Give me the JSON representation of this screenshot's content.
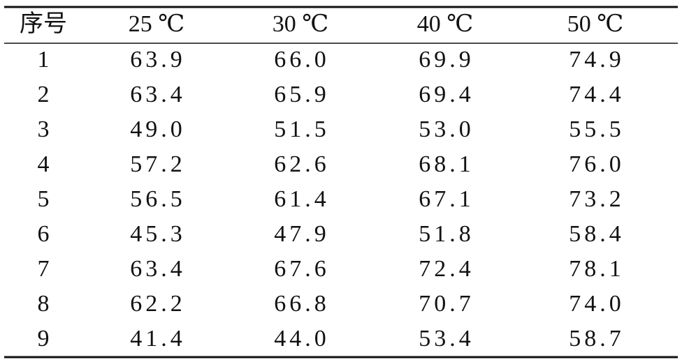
{
  "table": {
    "header": [
      "序号",
      "25 ℃",
      "30 ℃",
      "40 ℃",
      "50 ℃"
    ],
    "rows": [
      [
        "1",
        "63.9",
        "66.0",
        "69.9",
        "74.9"
      ],
      [
        "2",
        "63.4",
        "65.9",
        "69.4",
        "74.4"
      ],
      [
        "3",
        "49.0",
        "51.5",
        "53.0",
        "55.5"
      ],
      [
        "4",
        "57.2",
        "62.6",
        "68.1",
        "76.0"
      ],
      [
        "5",
        "56.5",
        "61.4",
        "67.1",
        "73.2"
      ],
      [
        "6",
        "45.3",
        "47.9",
        "51.8",
        "58.4"
      ],
      [
        "7",
        "63.4",
        "67.6",
        "72.4",
        "78.1"
      ],
      [
        "8",
        "62.2",
        "66.8",
        "70.7",
        "74.0"
      ],
      [
        "9",
        "41.4",
        "44.0",
        "53.4",
        "58.7"
      ]
    ]
  }
}
